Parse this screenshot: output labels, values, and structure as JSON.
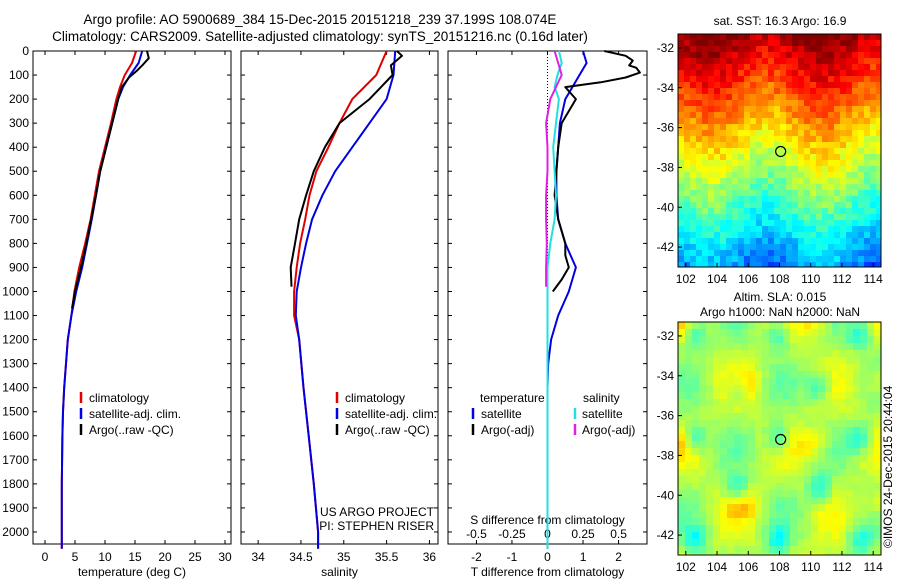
{
  "title_line1": "Argo profile: AO 5900689_384 15-Dec-2015 20151218_239 37.199S 108.074E",
  "title_line2": "Climatology: CARS2009. Satellite-adjusted climatology: synTS_20151216.nc (0.16d later)",
  "timestamp": "©IMOS 24-Dec-2015 20:44:04",
  "colors": {
    "climatology": "#e00000",
    "satellite": "#0000e0",
    "argo": "#000000",
    "sal_satellite": "#22e0e0",
    "sal_argo": "#e020e0"
  },
  "chart_data": [
    {
      "type": "line",
      "xlabel": "temperature (deg C)",
      "ylabel": "",
      "xlim": [
        -2,
        31
      ],
      "ylim": [
        2050,
        0
      ],
      "xticks": [
        0,
        5,
        10,
        15,
        20,
        25,
        30
      ],
      "yticks": [
        0,
        100,
        200,
        300,
        400,
        500,
        600,
        700,
        800,
        900,
        1000,
        1100,
        1200,
        1300,
        1400,
        1500,
        1600,
        1700,
        1800,
        1900,
        2000
      ],
      "legend": [
        "climatology",
        "satellite-adj. clim.",
        "Argo(..raw -QC)"
      ],
      "series": [
        {
          "name": "climatology",
          "x": [
            15.2,
            14.5,
            13.3,
            12.5,
            11.9,
            11.0,
            10.0,
            9.0,
            8.3,
            7.6,
            6.7,
            5.7,
            4.9,
            4.4,
            3.8,
            3.5,
            3.2,
            3.0,
            2.9,
            2.8,
            2.8,
            2.8
          ],
          "y": [
            0,
            50,
            100,
            150,
            200,
            300,
            400,
            500,
            600,
            700,
            800,
            900,
            1000,
            1100,
            1200,
            1300,
            1400,
            1500,
            1600,
            1800,
            2000,
            2070
          ]
        },
        {
          "name": "satellite-adj. clim.",
          "x": [
            16.2,
            15.6,
            14.2,
            13.0,
            12.2,
            11.2,
            10.2,
            9.2,
            8.5,
            7.8,
            7.0,
            6.2,
            5.2,
            4.4,
            3.8,
            3.5,
            3.2,
            3.0,
            2.9,
            2.8,
            2.8,
            2.8
          ],
          "y": [
            0,
            50,
            100,
            150,
            200,
            300,
            400,
            500,
            600,
            700,
            800,
            900,
            1000,
            1100,
            1200,
            1300,
            1400,
            1500,
            1600,
            1800,
            2000,
            2070
          ]
        },
        {
          "name": "Argo(..raw -QC)",
          "x": [
            17.0,
            17.3,
            16.2,
            15.4,
            14.0,
            12.8,
            12.2,
            11.2,
            10.2,
            9.2,
            8.5,
            7.7,
            6.9,
            6.0,
            5.0,
            4.5
          ],
          "y": [
            0,
            30,
            60,
            80,
            110,
            150,
            200,
            300,
            400,
            500,
            600,
            700,
            800,
            900,
            1000,
            1070
          ]
        }
      ]
    },
    {
      "type": "line",
      "xlabel": "salinity",
      "xlim": [
        33.8,
        36.1
      ],
      "ylim": [
        2050,
        0
      ],
      "xticks": [
        34,
        34.5,
        35,
        35.5,
        36
      ],
      "legend": [
        "climatology",
        "satellite-adj. clim.",
        "Argo(..raw -QC)"
      ],
      "annotations": [
        "US ARGO PROJECT",
        "PI: STEPHEN RISER"
      ],
      "series": [
        {
          "name": "climatology",
          "x": [
            35.5,
            35.38,
            35.1,
            34.95,
            34.82,
            34.68,
            34.6,
            34.55,
            34.49,
            34.45,
            34.42,
            34.42,
            34.48,
            34.53,
            34.59,
            34.65,
            34.7,
            34.7
          ],
          "y": [
            0,
            100,
            200,
            300,
            400,
            500,
            600,
            700,
            800,
            900,
            1000,
            1100,
            1200,
            1400,
            1600,
            1800,
            2000,
            2070
          ]
        },
        {
          "name": "satellite-adj. clim.",
          "x": [
            35.6,
            35.58,
            35.5,
            35.3,
            35.1,
            34.9,
            34.75,
            34.63,
            34.56,
            34.5,
            34.45,
            34.44,
            34.48,
            34.53,
            34.59,
            34.65,
            34.7,
            34.7
          ],
          "y": [
            0,
            100,
            200,
            300,
            400,
            500,
            600,
            700,
            800,
            900,
            1000,
            1100,
            1200,
            1400,
            1600,
            1800,
            2000,
            2070
          ]
        },
        {
          "name": "Argo(..raw -QC)",
          "x": [
            35.62,
            35.68,
            35.55,
            35.57,
            35.3,
            34.95,
            34.78,
            34.65,
            34.56,
            34.48,
            34.43,
            34.38,
            34.39
          ],
          "y": [
            0,
            20,
            60,
            100,
            200,
            300,
            400,
            500,
            600,
            700,
            800,
            900,
            980
          ]
        }
      ]
    },
    {
      "type": "line",
      "xlabel": "T difference from climatology",
      "xlim": [
        -2.8,
        2.8
      ],
      "ylim": [
        2050,
        0
      ],
      "xticks": [
        -2,
        -1,
        0,
        1,
        2
      ],
      "x2label": "S difference from climatology",
      "x2lim": [
        -0.7,
        0.7
      ],
      "x2ticks": [
        -0.5,
        -0.25,
        0,
        0.25,
        0.5
      ],
      "x2ticklabels": [
        "-0.5",
        "-0.25",
        "0",
        "0.25",
        "0.5"
      ],
      "legend_temperature": {
        "header": "temperature",
        "items": [
          "satellite",
          "Argo(-adj)"
        ]
      },
      "legend_salinity": {
        "header": "salinity",
        "items": [
          "satellite",
          "Argo(-adj)"
        ]
      },
      "series": [
        {
          "name": "temperature satellite",
          "axis": "T",
          "x": [
            1.0,
            1.1,
            0.9,
            0.7,
            0.5,
            0.35,
            0.3,
            0.25,
            0.25,
            0.3,
            0.5,
            0.8,
            0.6,
            0.3,
            0.1,
            0.02,
            0.0,
            0.0,
            0.0
          ],
          "y": [
            0,
            50,
            100,
            150,
            200,
            300,
            400,
            500,
            600,
            700,
            800,
            900,
            1000,
            1100,
            1200,
            1300,
            1400,
            1600,
            2070
          ]
        },
        {
          "name": "temperature Argo(-adj)",
          "axis": "T",
          "x": [
            1.6,
            2.2,
            2.4,
            2.3,
            2.5,
            2.6,
            2.2,
            1.5,
            0.5,
            0.8,
            0.6,
            0.4,
            0.3,
            0.25,
            0.2,
            0.3,
            0.5,
            0.5,
            0.6,
            0.4,
            0.15
          ],
          "y": [
            0,
            20,
            40,
            60,
            70,
            90,
            110,
            130,
            150,
            200,
            250,
            300,
            400,
            500,
            600,
            700,
            800,
            850,
            900,
            950,
            1000
          ]
        },
        {
          "name": "salinity satellite",
          "axis": "S",
          "x": [
            0.08,
            0.1,
            0.07,
            0.05,
            0.08,
            0.06,
            0.04,
            0.05,
            0.06,
            0.05,
            0.02,
            0.0,
            0.0,
            0.0
          ],
          "y": [
            0,
            50,
            100,
            150,
            200,
            300,
            400,
            500,
            600,
            700,
            800,
            900,
            1000,
            2070
          ]
        },
        {
          "name": "salinity Argo(-adj)",
          "axis": "S",
          "x": [
            0.05,
            0.08,
            0.1,
            0.02,
            -0.01,
            0.0,
            0.0,
            -0.01,
            -0.01,
            -0.005,
            -0.01,
            -0.01
          ],
          "y": [
            0,
            60,
            100,
            200,
            300,
            400,
            500,
            600,
            700,
            800,
            900,
            980
          ]
        }
      ]
    },
    {
      "type": "heatmap",
      "title": "sat. SST: 16.3  Argo: 16.9",
      "xlim": [
        101.5,
        114.5
      ],
      "ylim": [
        -43,
        -31.3
      ],
      "xticks": [
        102,
        104,
        106,
        108,
        110,
        112,
        114
      ],
      "yticks": [
        -32,
        -34,
        -36,
        -38,
        -40,
        -42
      ],
      "marker": {
        "lon": 108.074,
        "lat": -37.199
      }
    },
    {
      "type": "heatmap",
      "title": "Altim. SLA: 0.015",
      "subtitle": "Argo h1000: NaN h2000: NaN",
      "xlim": [
        101.5,
        114.5
      ],
      "ylim": [
        -43,
        -31.3
      ],
      "xticks": [
        102,
        104,
        106,
        108,
        110,
        112,
        114
      ],
      "yticks": [
        -32,
        -34,
        -36,
        -38,
        -40,
        -42
      ],
      "marker": {
        "lon": 108.074,
        "lat": -37.199
      }
    }
  ]
}
